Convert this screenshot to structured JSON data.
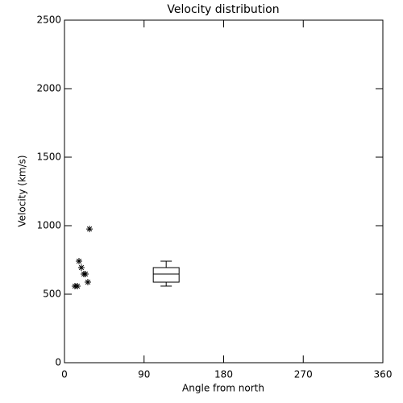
{
  "chart_data": {
    "type": "scatter",
    "title": "Velocity distribution",
    "x_label": "Angle from north",
    "y_label": "Velocity (km/s)",
    "x": [
      11.8,
      14.6,
      16.4,
      19.1,
      21.9,
      23.7,
      26.4,
      28.3
    ],
    "y": [
      559,
      559,
      741,
      694,
      647,
      647,
      588,
      976
    ],
    "box": {
      "x": 115,
      "whislo": 559,
      "q1": 588,
      "med": 647,
      "q3": 694,
      "whishi": 741
    },
    "color": "#000000",
    "xlim": [
      0,
      360
    ],
    "xticks": [
      0,
      90,
      180,
      270,
      360
    ],
    "ylim": [
      0,
      2500
    ],
    "yticks": [
      0,
      500,
      1000,
      1500,
      2000,
      2500
    ]
  }
}
